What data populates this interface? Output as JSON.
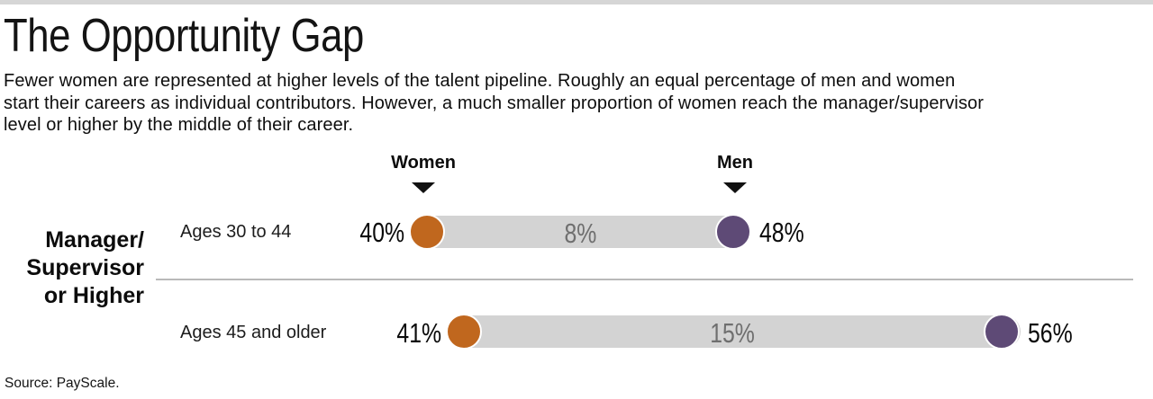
{
  "header": {
    "title": "The Opportunity Gap",
    "description_line1": "Fewer women are represented at higher levels of the talent pipeline. Roughly an equal percentage of men and women",
    "description_line2": "start their careers as individual contributors. However, a much smaller proportion of women reach the manager/supervisor",
    "description_line3": "level or higher by the middle of their career."
  },
  "chart_data": {
    "type": "dumbbell",
    "title": "The Opportunity Gap",
    "group_label": "Manager/Supervisor or Higher",
    "group_label_multiline": "Manager/\nSupervisor\nor Higher",
    "legend": {
      "women": "Women",
      "men": "Men"
    },
    "categories": [
      "Ages 30 to 44",
      "Ages 45 and older"
    ],
    "series": [
      {
        "name": "Women",
        "values": [
          40,
          41
        ]
      },
      {
        "name": "Men",
        "values": [
          48,
          56
        ]
      }
    ],
    "gaps": [
      8,
      15
    ],
    "rows": [
      {
        "label": "Ages 30 to 44",
        "women_label": "40%",
        "gap_label": "8%",
        "men_label": "48%"
      },
      {
        "label": "Ages 45 and older",
        "women_label": "41%",
        "gap_label": "15%",
        "men_label": "56%"
      }
    ],
    "colors": {
      "women": "#c0671e",
      "men": "#5e4a76",
      "bar": "#d3d3d3",
      "gap_text": "#6f6f6f"
    },
    "layout": {
      "legend_position": "top",
      "grid": false
    }
  },
  "footer": {
    "source": "Source: PayScale."
  }
}
